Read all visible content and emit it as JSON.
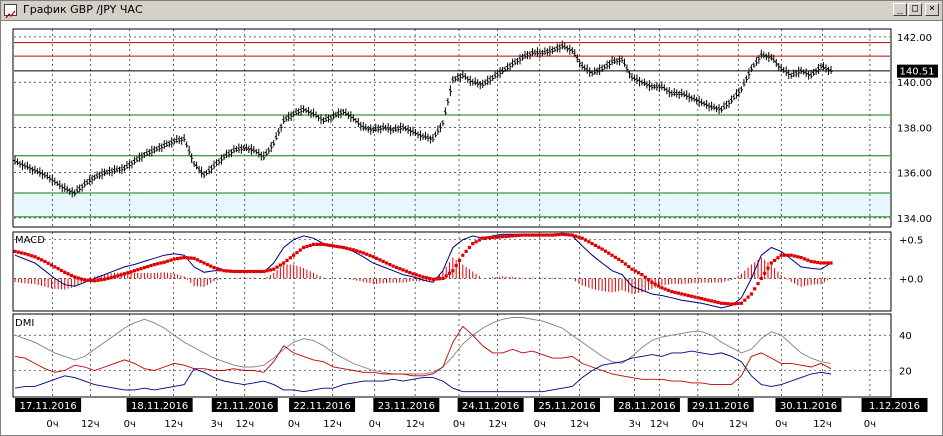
{
  "window": {
    "title": "График GBP /JPY  ЧАС",
    "buttons": {
      "minimize": "_",
      "maximize": "□",
      "close": "×"
    }
  },
  "chart_data": [
    {
      "type": "line",
      "panel": "price",
      "y_ticks": [
        "142.00",
        "140.00",
        "138.00",
        "136.00",
        "134.00"
      ],
      "y_tick_values": [
        142,
        140,
        138,
        136,
        134
      ],
      "ylim": [
        133.6,
        142.35
      ],
      "current_price": "140.51",
      "current_value": 140.51,
      "horizontal_levels": [
        {
          "value": 141.75,
          "color": "#c00000"
        },
        {
          "value": 141.15,
          "color": "#c00000"
        },
        {
          "value": 140.5,
          "color": "#000000"
        },
        {
          "value": 138.55,
          "color": "#008000"
        },
        {
          "value": 136.75,
          "color": "#008000"
        },
        {
          "value": 135.1,
          "color": "#008000"
        },
        {
          "value": 134.05,
          "color": "#008000"
        }
      ],
      "shaded_zone": {
        "from": 134.05,
        "to": 135.1,
        "color": "#e8f6ff"
      },
      "series": [
        {
          "values": [
            136.5,
            136.3,
            136.1,
            135.9,
            135.6,
            135.3,
            135.1,
            135.5,
            135.8,
            136.0,
            136.1,
            136.2,
            136.5,
            136.8,
            137.0,
            137.2,
            137.4,
            137.5,
            136.4,
            135.9,
            136.3,
            136.7,
            137.0,
            137.1,
            137.0,
            136.7,
            137.3,
            138.3,
            138.6,
            138.8,
            138.6,
            138.3,
            138.5,
            138.7,
            138.4,
            138.0,
            137.9,
            138.0,
            137.9,
            138.0,
            137.8,
            137.6,
            137.5,
            138.2,
            140.1,
            140.3,
            140.0,
            139.9,
            140.2,
            140.5,
            140.8,
            141.1,
            141.3,
            141.3,
            141.4,
            141.6,
            141.4,
            140.7,
            140.4,
            140.6,
            140.9,
            141.0,
            140.2,
            140.0,
            139.8,
            139.8,
            139.5,
            139.5,
            139.3,
            139.1,
            138.9,
            138.8,
            139.2,
            139.7,
            140.6,
            141.2,
            141.1,
            140.6,
            140.3,
            140.5,
            140.3,
            140.7,
            140.51
          ]
        }
      ]
    },
    {
      "type": "line",
      "panel": "macd",
      "label": "MACD",
      "y_ticks": [
        "+0.5",
        "+0.0"
      ],
      "y_tick_values": [
        0.5,
        0.0
      ],
      "ylim": [
        -0.42,
        0.6
      ],
      "series": [
        {
          "color": "#000080",
          "values": [
            0.3,
            0.25,
            0.2,
            0.1,
            0.0,
            -0.08,
            -0.1,
            -0.05,
            0.0,
            0.05,
            0.1,
            0.15,
            0.18,
            0.22,
            0.26,
            0.3,
            0.32,
            0.3,
            0.15,
            0.08,
            0.1,
            0.1,
            0.1,
            0.1,
            0.1,
            0.08,
            0.2,
            0.4,
            0.5,
            0.55,
            0.52,
            0.45,
            0.42,
            0.4,
            0.35,
            0.28,
            0.2,
            0.15,
            0.1,
            0.05,
            0.02,
            -0.02,
            -0.05,
            0.1,
            0.4,
            0.5,
            0.55,
            0.52,
            0.55,
            0.57,
            0.57,
            0.57,
            0.57,
            0.57,
            0.57,
            0.58,
            0.55,
            0.42,
            0.3,
            0.2,
            0.1,
            0.05,
            -0.1,
            -0.15,
            -0.2,
            -0.22,
            -0.25,
            -0.28,
            -0.3,
            -0.32,
            -0.35,
            -0.38,
            -0.35,
            -0.25,
            0.0,
            0.3,
            0.4,
            0.35,
            0.25,
            0.15,
            0.13,
            0.12,
            0.2
          ]
        },
        {
          "color": "#e00000",
          "values": [
            0.35,
            0.32,
            0.28,
            0.22,
            0.15,
            0.08,
            0.02,
            -0.02,
            -0.03,
            -0.01,
            0.02,
            0.06,
            0.1,
            0.14,
            0.18,
            0.21,
            0.25,
            0.27,
            0.26,
            0.2,
            0.14,
            0.1,
            0.09,
            0.09,
            0.09,
            0.09,
            0.12,
            0.2,
            0.3,
            0.4,
            0.44,
            0.44,
            0.42,
            0.4,
            0.37,
            0.33,
            0.28,
            0.22,
            0.16,
            0.11,
            0.06,
            0.02,
            -0.01,
            0.0,
            0.1,
            0.3,
            0.45,
            0.52,
            0.53,
            0.54,
            0.55,
            0.56,
            0.56,
            0.56,
            0.56,
            0.57,
            0.56,
            0.52,
            0.45,
            0.38,
            0.3,
            0.22,
            0.12,
            0.05,
            -0.05,
            -0.12,
            -0.17,
            -0.2,
            -0.23,
            -0.26,
            -0.29,
            -0.32,
            -0.33,
            -0.32,
            -0.2,
            0.0,
            0.2,
            0.3,
            0.3,
            0.27,
            0.22,
            0.2,
            0.2
          ]
        }
      ]
    },
    {
      "type": "line",
      "panel": "dmi",
      "label": "DMI",
      "y_ticks": [
        "40",
        "20"
      ],
      "y_tick_values": [
        40,
        20
      ],
      "ylim": [
        5,
        52
      ],
      "series": [
        {
          "color": "#808080",
          "values": [
            40,
            38,
            36,
            33,
            30,
            28,
            26,
            28,
            32,
            36,
            40,
            44,
            47,
            49,
            47,
            44,
            40,
            36,
            33,
            30,
            27,
            25,
            23,
            22,
            22,
            23,
            27,
            32,
            36,
            38,
            37,
            34,
            30,
            27,
            24,
            22,
            20,
            19,
            18,
            18,
            18,
            18,
            19,
            22,
            28,
            35,
            40,
            44,
            47,
            49,
            50,
            50,
            49,
            48,
            46,
            44,
            40,
            36,
            32,
            28,
            25,
            24,
            28,
            33,
            37,
            39,
            40,
            41,
            42,
            42,
            40,
            36,
            33,
            30,
            32,
            38,
            42,
            40,
            35,
            30,
            27,
            25,
            24
          ]
        },
        {
          "color": "#c00000",
          "values": [
            28,
            27,
            24,
            21,
            19,
            20,
            23,
            22,
            20,
            22,
            24,
            26,
            24,
            21,
            20,
            22,
            24,
            23,
            21,
            21,
            20,
            20,
            21,
            20,
            20,
            19,
            25,
            34,
            30,
            28,
            26,
            25,
            22,
            21,
            20,
            19,
            19,
            18,
            18,
            18,
            17,
            17,
            18,
            22,
            36,
            45,
            40,
            34,
            30,
            30,
            32,
            30,
            31,
            29,
            27,
            27,
            28,
            24,
            22,
            20,
            18,
            17,
            16,
            15,
            15,
            15,
            14,
            14,
            13,
            13,
            12,
            12,
            12,
            17,
            28,
            30,
            27,
            24,
            24,
            23,
            22,
            24,
            21
          ]
        },
        {
          "color": "#000080",
          "values": [
            10,
            11,
            11,
            13,
            15,
            17,
            16,
            14,
            12,
            11,
            10,
            9,
            9,
            10,
            9,
            10,
            11,
            12,
            21,
            19,
            16,
            14,
            13,
            12,
            13,
            14,
            12,
            9,
            9,
            8,
            9,
            10,
            10,
            12,
            13,
            14,
            14,
            14,
            15,
            14,
            15,
            16,
            16,
            14,
            10,
            8,
            8,
            8,
            8,
            8,
            8,
            8,
            8,
            8,
            9,
            10,
            11,
            16,
            20,
            23,
            24,
            25,
            27,
            28,
            29,
            28,
            30,
            30,
            31,
            30,
            29,
            30,
            28,
            25,
            17,
            12,
            11,
            12,
            14,
            16,
            18,
            19,
            18
          ]
        }
      ]
    }
  ],
  "x_axis": {
    "dates": [
      {
        "label": "17.11.2016",
        "pos": 0.04
      },
      {
        "label": "18.11.2016",
        "pos": 0.167
      },
      {
        "label": "21.11.2016",
        "pos": 0.264
      },
      {
        "label": "22.11.2016",
        "pos": 0.352
      },
      {
        "label": "23.11.2016",
        "pos": 0.448
      },
      {
        "label": "24.11.2016",
        "pos": 0.544
      },
      {
        "label": "25.11.2016",
        "pos": 0.631
      },
      {
        "label": "28.11.2016",
        "pos": 0.722
      },
      {
        "label": "29.11.2016",
        "pos": 0.806
      },
      {
        "label": "30.11.2016",
        "pos": 0.906
      },
      {
        "label": "1.12.2016",
        "pos": 1.004
      }
    ],
    "hours": [
      {
        "label": "0ч",
        "pos": 0.045
      },
      {
        "label": "12ч",
        "pos": 0.088
      },
      {
        "label": "0ч",
        "pos": 0.133
      },
      {
        "label": "12ч",
        "pos": 0.183
      },
      {
        "label": "3ч",
        "pos": 0.232
      },
      {
        "label": "12ч",
        "pos": 0.264
      },
      {
        "label": "0ч",
        "pos": 0.32
      },
      {
        "label": "12ч",
        "pos": 0.364
      },
      {
        "label": "0ч",
        "pos": 0.412
      },
      {
        "label": "12ч",
        "pos": 0.458
      },
      {
        "label": "0ч",
        "pos": 0.508
      },
      {
        "label": "12ч",
        "pos": 0.552
      },
      {
        "label": "0ч",
        "pos": 0.6
      },
      {
        "label": "12ч",
        "pos": 0.645
      },
      {
        "label": "3ч",
        "pos": 0.708
      },
      {
        "label": "12ч",
        "pos": 0.736
      },
      {
        "label": "0ч",
        "pos": 0.78
      },
      {
        "label": "12ч",
        "pos": 0.826
      },
      {
        "label": "0ч",
        "pos": 0.875
      },
      {
        "label": "12ч",
        "pos": 0.922
      },
      {
        "label": "0ч",
        "pos": 0.976
      }
    ]
  }
}
